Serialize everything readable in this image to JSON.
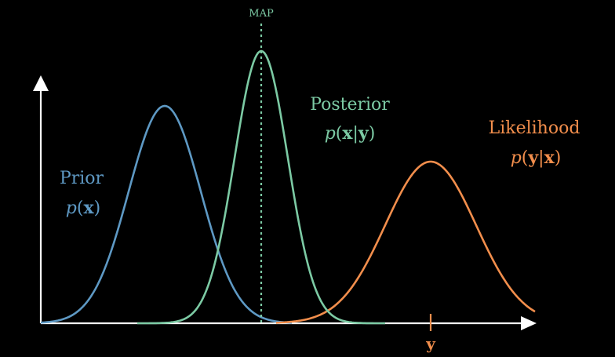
{
  "colors": {
    "background": "#000000",
    "axis": "#ffffff",
    "prior": "#5e99c4",
    "posterior": "#7ccaa4",
    "likelihood": "#f28e4c"
  },
  "labels": {
    "map": "MAP",
    "prior": "Prior",
    "posterior": "Posterior",
    "likelihood": "Likelihood",
    "observation": "y"
  },
  "formulas": {
    "prior": {
      "fn": "p",
      "open": "(",
      "arg": "x",
      "close": ")"
    },
    "posterior": {
      "fn": "p",
      "open": "(",
      "arg1": "x",
      "bar": "|",
      "arg2": "y",
      "close": ")"
    },
    "likelihood": {
      "fn": "p",
      "open": "(",
      "arg1": "y",
      "bar": "|",
      "arg2": "x",
      "close": ")"
    }
  }
}
